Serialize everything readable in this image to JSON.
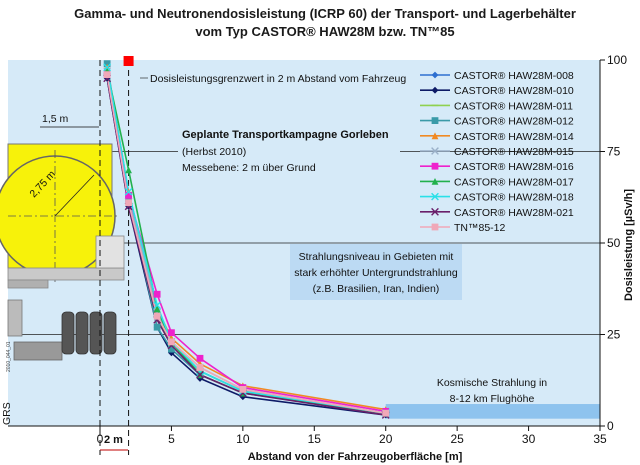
{
  "title": {
    "line1": "Gamma- und Neutronendosisleistung (ICRP 60) der Transport- und Lagerbehälter",
    "line2": "vom Typ  CASTOR® HAW28M bzw. TN™85"
  },
  "colors": {
    "background": "#d6eaf8",
    "band": "#b9d8f2",
    "limit_marker": "#ff0000",
    "cask_yellow": "#f7f20a"
  },
  "annotations": {
    "limit": "Dosisleistungsgrenzwert in 2 m Abstand vom Fahrzeug",
    "campaign_title": "Geplante Transportkampagne Gorleben",
    "campaign_sub1": "(Herbst 2010)",
    "campaign_sub2": "Messebene: 2 m über Grund",
    "radiation_line1": "Strahlungsniveau in Gebieten mit",
    "radiation_line2": "stark erhöhter Untergrundstrahlung",
    "radiation_line3": "(z.B. Brasilien, Iran, Indien)",
    "cosmic_line1": "Kosmische Strahlung in",
    "cosmic_line2": "8-12 km Flughöhe",
    "dist_15": "1,5 m",
    "dist_275": "2,75 m",
    "dist_2": "2 m",
    "logo": "GRS",
    "logo_code": "2010_044_01"
  },
  "chart_data": {
    "type": "line",
    "title": "Gamma- und Neutronendosisleistung (ICRP 60) der Transport- und Lagerbehälter vom Typ  CASTOR® HAW28M bzw. TN™85",
    "xlabel": "Abstand von der Fahrzeugoberfläche [m]",
    "ylabel": "Dosisleistung [µSv/h]",
    "xlim": [
      -5.5,
      35
    ],
    "ylim": [
      0,
      100
    ],
    "xticks": [
      0,
      5,
      10,
      15,
      20,
      25,
      30,
      35
    ],
    "yticks": [
      0,
      25,
      50,
      75,
      100
    ],
    "grid": "horizontal lines at 25, 50, 75",
    "legend_position": "top-right",
    "x": [
      0.5,
      2,
      4,
      5,
      7,
      10,
      20
    ],
    "series": [
      {
        "name": "CASTOR® HAW28M-008",
        "color": "#2e6fd0",
        "marker": "diamond",
        "values": [
          97,
          62,
          30,
          22,
          15,
          9.5,
          3.5
        ]
      },
      {
        "name": "CASTOR® HAW28M-010",
        "color": "#0d1a66",
        "marker": "diamond",
        "values": [
          95,
          60,
          27,
          20,
          13,
          8,
          3
        ]
      },
      {
        "name": "CASTOR® HAW28M-011",
        "color": "#8fd14f",
        "marker": "line",
        "values": [
          96,
          63,
          30,
          22,
          15,
          9.5,
          3.5
        ]
      },
      {
        "name": "CASTOR® HAW28M-012",
        "color": "#3a9aa8",
        "marker": "square",
        "values": [
          99,
          62,
          27,
          21,
          14,
          9,
          3.5
        ]
      },
      {
        "name": "CASTOR® HAW28M-014",
        "color": "#f08a24",
        "marker": "triangle",
        "values": [
          98,
          64,
          32,
          24,
          17,
          11,
          4.5
        ]
      },
      {
        "name": "CASTOR® HAW28M-015",
        "color": "#9ab0c8",
        "marker": "cross",
        "values": [
          97,
          63,
          31,
          23,
          16,
          10,
          3.5
        ]
      },
      {
        "name": "CASTOR® HAW28M-016",
        "color": "#ee22cc",
        "marker": "square",
        "values": [
          96,
          63,
          36,
          25.5,
          18.5,
          10.5,
          4
        ]
      },
      {
        "name": "CASTOR® HAW28M-017",
        "color": "#22b14c",
        "marker": "triangle",
        "values": [
          97,
          70,
          32,
          23,
          14,
          9,
          3.5
        ]
      },
      {
        "name": "CASTOR® HAW28M-018",
        "color": "#2be0e8",
        "marker": "cross",
        "values": [
          98,
          64,
          33,
          23,
          15,
          9.5,
          3.5
        ]
      },
      {
        "name": "CASTOR® HAW28M-021",
        "color": "#6a1f6a",
        "marker": "cross",
        "values": [
          95,
          60,
          29,
          22,
          14,
          9,
          3
        ]
      },
      {
        "name": "TN™85-12",
        "color": "#f0a8b8",
        "marker": "square",
        "values": [
          96,
          61,
          30,
          23,
          16,
          10,
          3.5
        ]
      }
    ],
    "limit_value": {
      "x": 2,
      "y": 100
    },
    "bands": [
      {
        "label": "radiation",
        "y_from": 25,
        "y_to": 50
      },
      {
        "label": "cosmic",
        "x_from": 20,
        "x_to": 35,
        "y_from": 2,
        "y_to": 6
      }
    ]
  }
}
